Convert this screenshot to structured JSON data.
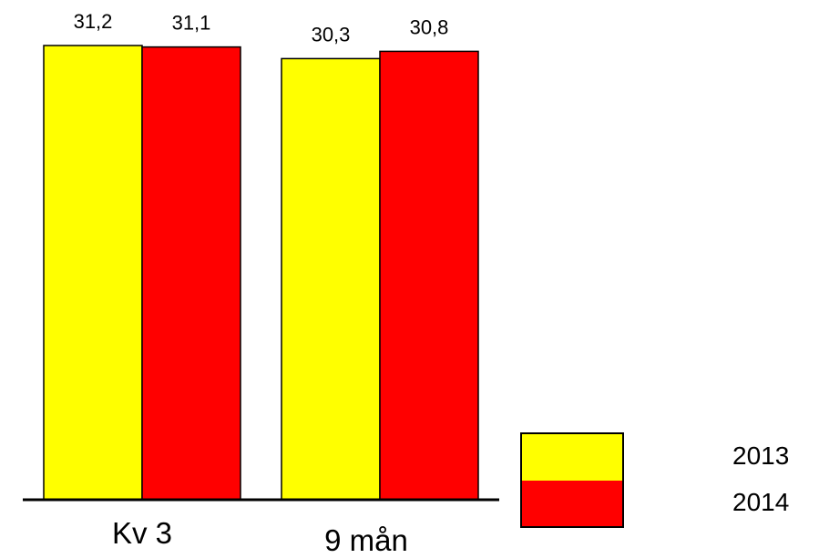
{
  "chart_data": {
    "type": "bar",
    "categories": [
      "Kv 3",
      "9 mån"
    ],
    "series": [
      {
        "name": "2013",
        "values": [
          31.2,
          30.3
        ],
        "labels": [
          "31,2",
          "30,3"
        ],
        "color": "#ffff00"
      },
      {
        "name": "2014",
        "values": [
          31.1,
          30.8
        ],
        "labels": [
          "31,1",
          "30,8"
        ],
        "color": "#ff0000"
      }
    ],
    "title": "",
    "xlabel": "",
    "ylabel": "",
    "ylim": [
      0,
      31.2
    ],
    "grid": false,
    "legend_position": "bottom-right",
    "legend_style": "stacked-swatch"
  }
}
